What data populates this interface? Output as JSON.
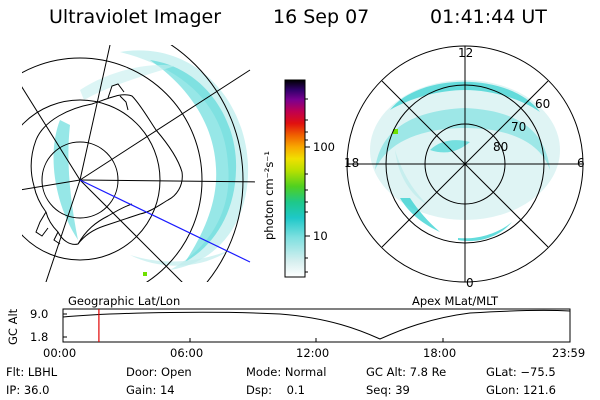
{
  "header": {
    "title": "Ultraviolet Imager",
    "date": "16 Sep 07",
    "time": "01:41:44 UT"
  },
  "colorbar": {
    "label": "photon cm⁻²s⁻¹",
    "ticks": [
      "100",
      "10"
    ]
  },
  "geo_panel": {
    "label": "Geographic Lat/Lon"
  },
  "mag_panel": {
    "label": "Apex MLat/MLT",
    "mlt_labels": {
      "top": "12",
      "left": "18",
      "right": "6",
      "bottom": "0"
    },
    "lat_labels": [
      "60",
      "70",
      "80"
    ]
  },
  "altitude_plot": {
    "ylabel": "GC Alt",
    "yticks": [
      "9.0",
      "1.8"
    ],
    "xticks": [
      "00:00",
      "06:00",
      "12:00",
      "18:00",
      "23:59"
    ],
    "marker_time_hours": 1.7
  },
  "info": {
    "row1": {
      "flt": "Flt: LBHL",
      "door": "Door: Open",
      "mode": "Mode: Normal",
      "gc_alt": "GC Alt: 7.8 Re",
      "glat": "GLat: −75.5"
    },
    "row2": {
      "ip": "IP: 36.0",
      "gain": "Gain: 14",
      "dsp": "Dsp:    0.1",
      "seq": "Seq: 39",
      "glon": "GLon: 121.6"
    }
  }
}
